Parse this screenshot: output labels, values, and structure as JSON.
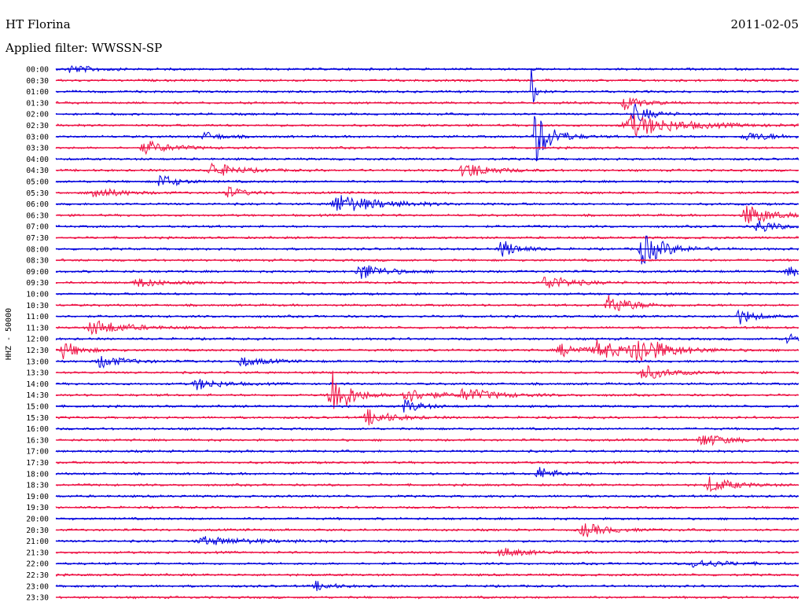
{
  "header": {
    "station": "HT Florina",
    "date": "2011-02-05",
    "filter": "Applied filter: WWSSN-SP"
  },
  "chart_data": {
    "type": "line",
    "title": "HT Florina",
    "date": "2011-02-05",
    "filter_label": "Applied filter: WWSSN-SP",
    "ylabel": "HHZ - 50000",
    "row_labels": [
      "00:00",
      "00:30",
      "01:00",
      "01:30",
      "02:00",
      "02:30",
      "03:00",
      "03:30",
      "04:00",
      "04:30",
      "05:00",
      "05:30",
      "06:00",
      "06:30",
      "07:00",
      "07:30",
      "08:00",
      "08:30",
      "09:00",
      "09:30",
      "10:00",
      "10:30",
      "11:00",
      "11:30",
      "12:00",
      "12:30",
      "13:00",
      "13:30",
      "14:00",
      "14:30",
      "15:00",
      "15:30",
      "16:00",
      "16:30",
      "17:00",
      "17:30",
      "18:00",
      "18:30",
      "19:00",
      "19:30",
      "20:00",
      "20:30",
      "21:00",
      "21:30",
      "22:00",
      "22:30",
      "23:00",
      "23:30"
    ],
    "series_colors": [
      "#0000dd",
      "#ee1144"
    ],
    "events": [
      {
        "row": 0,
        "pos": 0.02,
        "amp": 5,
        "width": 0.03
      },
      {
        "row": 2,
        "pos": 0.64,
        "amp": 30,
        "width": 0.004
      },
      {
        "row": 3,
        "pos": 0.765,
        "amp": 10,
        "width": 0.02
      },
      {
        "row": 4,
        "pos": 0.78,
        "amp": 12,
        "width": 0.02
      },
      {
        "row": 5,
        "pos": 0.775,
        "amp": 14,
        "width": 0.06
      },
      {
        "row": 6,
        "pos": 0.645,
        "amp": 35,
        "width": 0.02
      },
      {
        "row": 6,
        "pos": 0.2,
        "amp": 6,
        "width": 0.02
      },
      {
        "row": 6,
        "pos": 0.93,
        "amp": 5,
        "width": 0.04
      },
      {
        "row": 7,
        "pos": 0.12,
        "amp": 9,
        "width": 0.03
      },
      {
        "row": 9,
        "pos": 0.55,
        "amp": 11,
        "width": 0.03
      },
      {
        "row": 9,
        "pos": 0.21,
        "amp": 10,
        "width": 0.03
      },
      {
        "row": 10,
        "pos": 0.14,
        "amp": 10,
        "width": 0.02
      },
      {
        "row": 11,
        "pos": 0.05,
        "amp": 8,
        "width": 0.03
      },
      {
        "row": 11,
        "pos": 0.23,
        "amp": 8,
        "width": 0.02
      },
      {
        "row": 12,
        "pos": 0.38,
        "amp": 12,
        "width": 0.05
      },
      {
        "row": 13,
        "pos": 0.93,
        "amp": 14,
        "width": 0.03
      },
      {
        "row": 14,
        "pos": 0.945,
        "amp": 10,
        "width": 0.02
      },
      {
        "row": 16,
        "pos": 0.6,
        "amp": 12,
        "width": 0.02
      },
      {
        "row": 16,
        "pos": 0.79,
        "amp": 20,
        "width": 0.03
      },
      {
        "row": 18,
        "pos": 0.41,
        "amp": 11,
        "width": 0.03
      },
      {
        "row": 18,
        "pos": 0.985,
        "amp": 7,
        "width": 0.02
      },
      {
        "row": 19,
        "pos": 0.66,
        "amp": 10,
        "width": 0.03
      },
      {
        "row": 19,
        "pos": 0.11,
        "amp": 6,
        "width": 0.03
      },
      {
        "row": 21,
        "pos": 0.745,
        "amp": 12,
        "width": 0.03
      },
      {
        "row": 22,
        "pos": 0.92,
        "amp": 10,
        "width": 0.02
      },
      {
        "row": 23,
        "pos": 0.05,
        "amp": 10,
        "width": 0.04
      },
      {
        "row": 24,
        "pos": 0.985,
        "amp": 12,
        "width": 0.01
      },
      {
        "row": 25,
        "pos": 0.78,
        "amp": 18,
        "width": 0.04
      },
      {
        "row": 25,
        "pos": 0.73,
        "amp": 12,
        "width": 0.03
      },
      {
        "row": 25,
        "pos": 0.68,
        "amp": 8,
        "width": 0.03
      },
      {
        "row": 25,
        "pos": 0.01,
        "amp": 12,
        "width": 0.02
      },
      {
        "row": 26,
        "pos": 0.06,
        "amp": 8,
        "width": 0.03
      },
      {
        "row": 26,
        "pos": 0.25,
        "amp": 6,
        "width": 0.03
      },
      {
        "row": 27,
        "pos": 0.79,
        "amp": 10,
        "width": 0.03
      },
      {
        "row": 28,
        "pos": 0.19,
        "amp": 7,
        "width": 0.03
      },
      {
        "row": 29,
        "pos": 0.37,
        "amp": 40,
        "width": 0.02
      },
      {
        "row": 29,
        "pos": 0.47,
        "amp": 10,
        "width": 0.03
      },
      {
        "row": 29,
        "pos": 0.55,
        "amp": 8,
        "width": 0.04
      },
      {
        "row": 30,
        "pos": 0.47,
        "amp": 9,
        "width": 0.02
      },
      {
        "row": 31,
        "pos": 0.42,
        "amp": 10,
        "width": 0.03
      },
      {
        "row": 33,
        "pos": 0.87,
        "amp": 9,
        "width": 0.03
      },
      {
        "row": 36,
        "pos": 0.65,
        "amp": 9,
        "width": 0.02
      },
      {
        "row": 37,
        "pos": 0.88,
        "amp": 10,
        "width": 0.03
      },
      {
        "row": 41,
        "pos": 0.71,
        "amp": 9,
        "width": 0.03
      },
      {
        "row": 42,
        "pos": 0.2,
        "amp": 5,
        "width": 0.06
      },
      {
        "row": 43,
        "pos": 0.6,
        "amp": 6,
        "width": 0.03
      },
      {
        "row": 44,
        "pos": 0.86,
        "amp": 5,
        "width": 0.04
      },
      {
        "row": 46,
        "pos": 0.35,
        "amp": 6,
        "width": 0.02
      }
    ]
  }
}
